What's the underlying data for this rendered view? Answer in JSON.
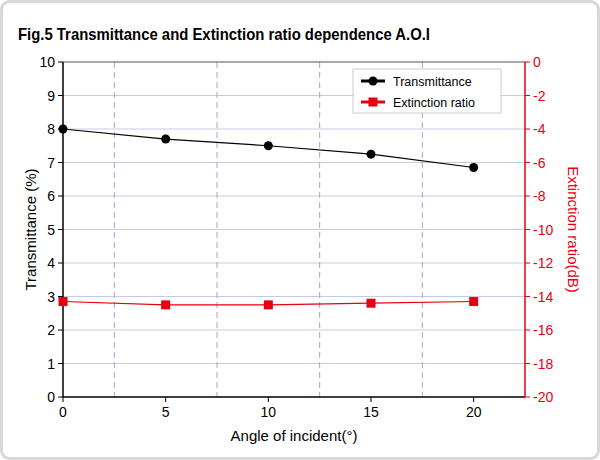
{
  "chart_data": {
    "type": "line",
    "title": "Fig.5 Transmittance and Extinction ratio dependence A.O.I",
    "x_label": "Angle of incident(°)",
    "y_label": "Transmittance (%)",
    "y2_label": "Extinction ratio(dB)",
    "x": [
      0,
      5,
      10,
      15,
      20
    ],
    "xlim": [
      0,
      22.5
    ],
    "xticks": [
      0,
      5,
      10,
      15,
      20
    ],
    "ylim": [
      0,
      10
    ],
    "yticks": [
      0,
      1,
      2,
      3,
      4,
      5,
      6,
      7,
      8,
      9,
      10
    ],
    "y2lim": [
      -20,
      0
    ],
    "y2ticks": [
      0,
      -2,
      -4,
      -6,
      -8,
      -10,
      -12,
      -14,
      -16,
      -18,
      -20
    ],
    "grid": true,
    "legend": "upper right",
    "series": [
      {
        "name": "Transmittance",
        "color": "#000000",
        "marker": "circle",
        "values": [
          8.0,
          7.7,
          7.5,
          7.25,
          6.85
        ]
      },
      {
        "name": "Extinction ratio",
        "color": "#e60012",
        "marker": "square",
        "axis": "y2",
        "values": [
          -14.3,
          -14.5,
          -14.5,
          -14.4,
          -14.3
        ]
      }
    ]
  }
}
